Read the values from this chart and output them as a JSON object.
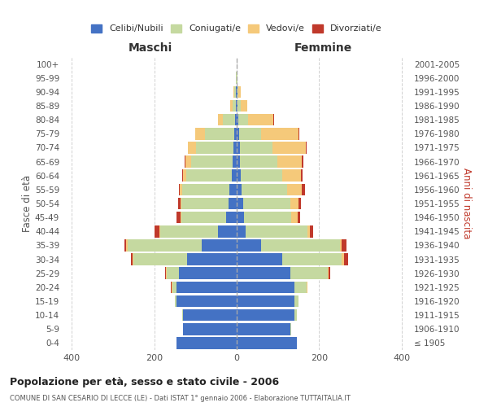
{
  "age_groups": [
    "0-4",
    "5-9",
    "10-14",
    "15-19",
    "20-24",
    "25-29",
    "30-34",
    "35-39",
    "40-44",
    "45-49",
    "50-54",
    "55-59",
    "60-64",
    "65-69",
    "70-74",
    "75-79",
    "80-84",
    "85-89",
    "90-94",
    "95-99",
    "100+"
  ],
  "birth_years": [
    "2001-2005",
    "1996-2000",
    "1991-1995",
    "1986-1990",
    "1981-1985",
    "1976-1980",
    "1971-1975",
    "1966-1970",
    "1961-1965",
    "1956-1960",
    "1951-1955",
    "1946-1950",
    "1941-1945",
    "1936-1940",
    "1931-1935",
    "1926-1930",
    "1921-1925",
    "1916-1920",
    "1911-1915",
    "1906-1910",
    "≤ 1905"
  ],
  "male": {
    "celibi": [
      145,
      130,
      130,
      145,
      145,
      140,
      120,
      85,
      45,
      25,
      20,
      18,
      12,
      10,
      8,
      6,
      4,
      2,
      1,
      0,
      0
    ],
    "coniugati": [
      0,
      0,
      3,
      5,
      10,
      30,
      130,
      180,
      140,
      110,
      115,
      115,
      110,
      100,
      90,
      70,
      30,
      8,
      4,
      1,
      0
    ],
    "vedovi": [
      0,
      0,
      0,
      0,
      2,
      2,
      2,
      3,
      2,
      2,
      2,
      5,
      8,
      15,
      20,
      25,
      12,
      5,
      2,
      0,
      0
    ],
    "divorziati": [
      0,
      0,
      0,
      0,
      2,
      2,
      5,
      5,
      12,
      8,
      5,
      2,
      2,
      1,
      1,
      0,
      0,
      0,
      0,
      0,
      0
    ]
  },
  "female": {
    "nubili": [
      145,
      130,
      140,
      140,
      140,
      130,
      110,
      60,
      22,
      18,
      15,
      12,
      10,
      8,
      7,
      5,
      3,
      2,
      1,
      0,
      0
    ],
    "coniugate": [
      0,
      2,
      5,
      10,
      30,
      90,
      145,
      190,
      150,
      115,
      115,
      110,
      100,
      90,
      80,
      55,
      25,
      8,
      3,
      1,
      0
    ],
    "vedove": [
      0,
      0,
      0,
      0,
      2,
      3,
      5,
      5,
      5,
      15,
      20,
      35,
      45,
      60,
      80,
      90,
      60,
      15,
      5,
      1,
      0
    ],
    "divorziate": [
      0,
      0,
      0,
      0,
      0,
      3,
      10,
      12,
      8,
      5,
      5,
      8,
      4,
      3,
      3,
      2,
      2,
      0,
      0,
      0,
      0
    ]
  },
  "colors": {
    "celibi_nubili": "#4472c4",
    "coniugati_e": "#c5d9a0",
    "vedovi_e": "#f5c97a",
    "divorziati_e": "#c0392b"
  },
  "title": "Popolazione per età, sesso e stato civile - 2006",
  "subtitle": "COMUNE DI SAN CESARIO DI LECCE (LE) - Dati ISTAT 1° gennaio 2006 - Elaborazione TUTTAITALIA.IT",
  "xlabel_left": "Maschi",
  "xlabel_right": "Femmine",
  "ylabel_left": "Fasce di età",
  "ylabel_right": "Anni di nascita",
  "xlim": 420,
  "legend_labels": [
    "Celibi/Nubili",
    "Coniugati/e",
    "Vedovi/e",
    "Divorziati/e"
  ],
  "bg_color": "#ffffff",
  "grid_color": "#cccccc"
}
